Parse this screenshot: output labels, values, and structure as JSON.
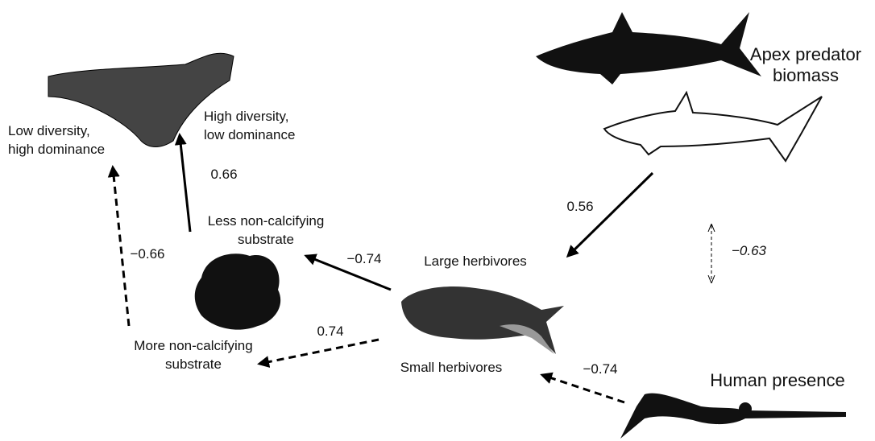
{
  "nodes": [
    {
      "lines": [
        "Apex predator",
        "biomass"
      ]
    },
    {
      "lines": [
        "High diversity,",
        "low dominance"
      ]
    },
    {
      "lines": [
        "Low diversity,",
        "high dominance"
      ]
    },
    {
      "lines": [
        "Less non-calcifying",
        "substrate"
      ]
    },
    {
      "lines": [
        "More non-calcifying",
        "substrate"
      ]
    },
    {
      "lines": [
        "Large herbivores"
      ]
    },
    {
      "lines": [
        "Small herbivores"
      ]
    },
    {
      "lines": [
        "Human presence"
      ]
    }
  ],
  "edges": [
    {
      "label": "0.56"
    },
    {
      "label": "−0.63"
    },
    {
      "label": "−0.74"
    },
    {
      "label": "0.66"
    },
    {
      "label": "−0.66"
    },
    {
      "label": "0.74"
    },
    {
      "label": "−0.74"
    }
  ]
}
